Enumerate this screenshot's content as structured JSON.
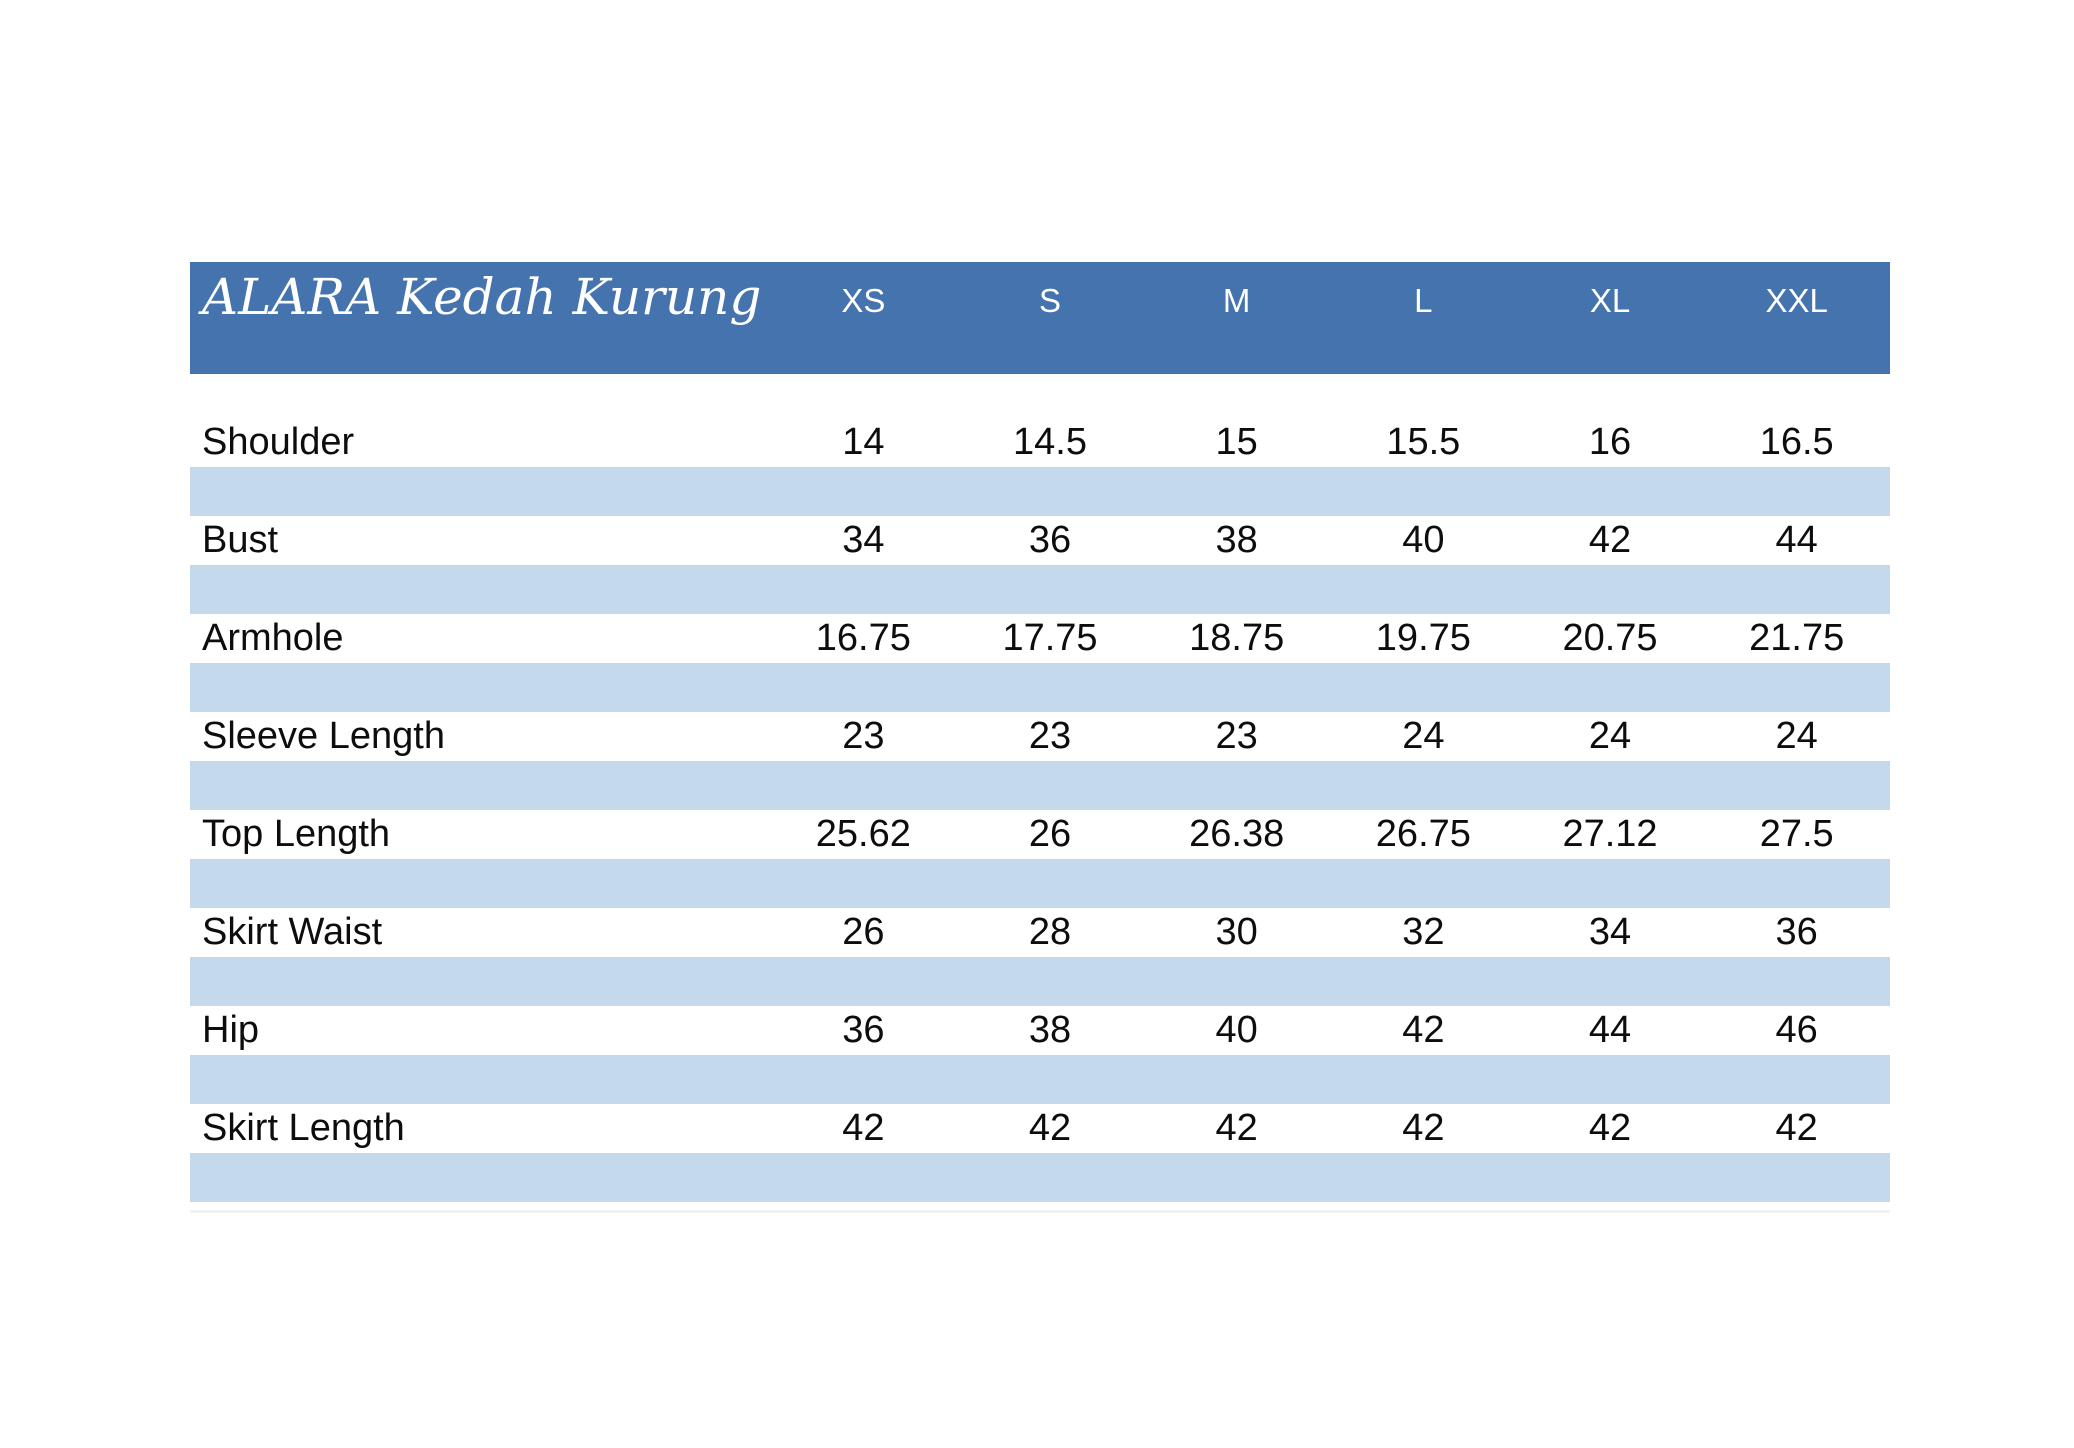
{
  "table": {
    "title": "ALARA Kedah Kurung",
    "columns": [
      "XS",
      "S",
      "M",
      "L",
      "XL",
      "XXL"
    ],
    "rows": [
      {
        "label": "Shoulder",
        "values": [
          "14",
          "14.5",
          "15",
          "15.5",
          "16",
          "16.5"
        ]
      },
      {
        "label": "Bust",
        "values": [
          "34",
          "36",
          "38",
          "40",
          "42",
          "44"
        ]
      },
      {
        "label": "Armhole",
        "values": [
          "16.75",
          "17.75",
          "18.75",
          "19.75",
          "20.75",
          "21.75"
        ]
      },
      {
        "label": "Sleeve Length",
        "values": [
          "23",
          "23",
          "23",
          "24",
          "24",
          "24"
        ]
      },
      {
        "label": "Top Length",
        "values": [
          "25.62",
          "26",
          "26.38",
          "26.75",
          "27.12",
          "27.5"
        ]
      },
      {
        "label": "Skirt Waist",
        "values": [
          "26",
          "28",
          "30",
          "32",
          "34",
          "36"
        ]
      },
      {
        "label": "Hip",
        "values": [
          "36",
          "38",
          "40",
          "42",
          "44",
          "46"
        ]
      },
      {
        "label": "Skirt Length",
        "values": [
          "42",
          "42",
          "42",
          "42",
          "42",
          "42"
        ]
      }
    ],
    "colors": {
      "header_bg": "#4473ae",
      "header_text": "#ffffff",
      "band_bg": "#c5d9ed",
      "row_bg": "#ffffff",
      "text": "#0d0d0d"
    }
  }
}
